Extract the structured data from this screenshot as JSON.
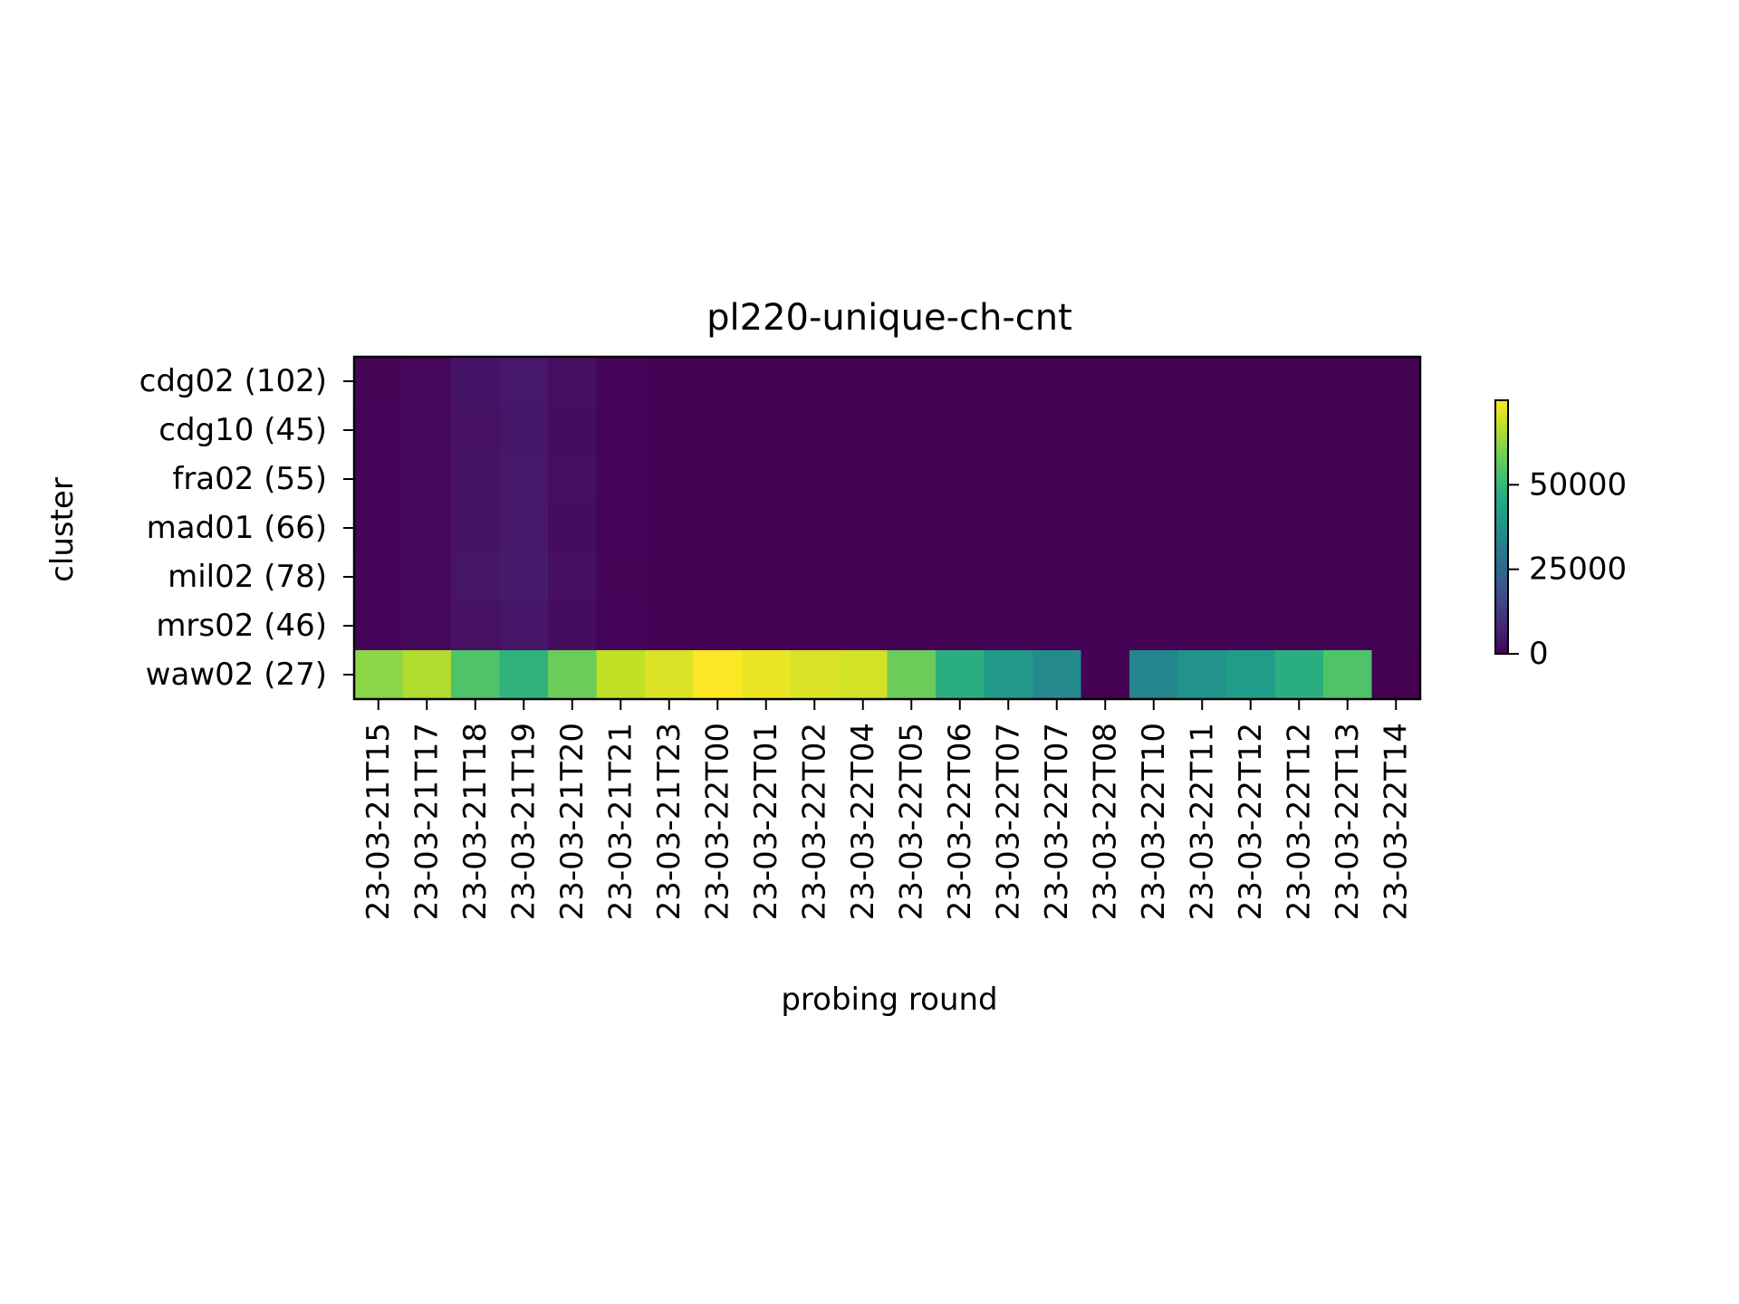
{
  "chart_data": {
    "type": "heatmap",
    "title": "pl220-unique-ch-cnt",
    "xlabel": "probing round",
    "ylabel": "cluster",
    "x": [
      "23-03-21T15",
      "23-03-21T17",
      "23-03-21T18",
      "23-03-21T19",
      "23-03-21T20",
      "23-03-21T21",
      "23-03-21T23",
      "23-03-22T00",
      "23-03-22T01",
      "23-03-22T02",
      "23-03-22T04",
      "23-03-22T05",
      "23-03-22T06",
      "23-03-22T07",
      "23-03-22T07",
      "23-03-22T08",
      "23-03-22T10",
      "23-03-22T11",
      "23-03-22T12",
      "23-03-22T12",
      "23-03-22T13",
      "23-03-22T14"
    ],
    "y": [
      "cdg02 (102)",
      "cdg10 (45)",
      "fra02 (55)",
      "mad01 (66)",
      "mil02 (78)",
      "mrs02 (46)",
      "waw02 (27)"
    ],
    "values": [
      [
        1000,
        1500,
        4000,
        5000,
        3000,
        800,
        300,
        200,
        200,
        200,
        200,
        200,
        200,
        200,
        200,
        200,
        200,
        200,
        200,
        200,
        200,
        200
      ],
      [
        800,
        1200,
        3500,
        4500,
        2500,
        600,
        200,
        150,
        150,
        150,
        150,
        150,
        150,
        150,
        150,
        150,
        150,
        150,
        150,
        150,
        150,
        150
      ],
      [
        900,
        1300,
        3800,
        4800,
        2800,
        700,
        250,
        180,
        180,
        180,
        180,
        180,
        180,
        180,
        180,
        180,
        180,
        180,
        180,
        180,
        180,
        180
      ],
      [
        850,
        1250,
        3600,
        4700,
        2600,
        650,
        220,
        160,
        160,
        160,
        160,
        160,
        160,
        160,
        160,
        160,
        160,
        160,
        160,
        160,
        160,
        160
      ],
      [
        950,
        1400,
        4200,
        5500,
        3100,
        750,
        280,
        190,
        190,
        190,
        190,
        190,
        190,
        190,
        190,
        190,
        190,
        190,
        190,
        190,
        190,
        190
      ],
      [
        800,
        1200,
        3400,
        4300,
        2400,
        600,
        200,
        150,
        150,
        150,
        150,
        150,
        150,
        150,
        150,
        150,
        150,
        150,
        150,
        150,
        150,
        150
      ],
      [
        62000,
        66000,
        54000,
        48000,
        58000,
        68000,
        71000,
        75000,
        73000,
        71000,
        70000,
        58000,
        47000,
        40000,
        35000,
        0,
        34000,
        38000,
        41000,
        47000,
        54000,
        0
      ]
    ],
    "colorbar": {
      "min": 0,
      "max": 75000,
      "ticks": [
        0,
        25000,
        50000
      ],
      "tick_labels": [
        "0",
        "25000",
        "50000"
      ],
      "colormap": "viridis"
    }
  }
}
